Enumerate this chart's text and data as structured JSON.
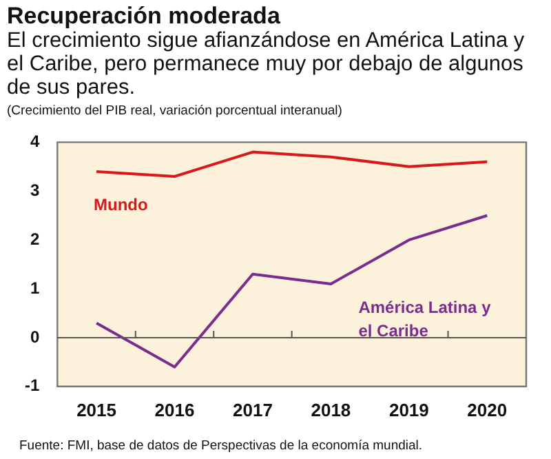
{
  "chart_data": {
    "type": "line",
    "title": "Recuperación moderada",
    "subtitle": "El crecimiento sigue afianzándose en América Latina y el Caribe, pero permanece muy por debajo de algunos de sus pares.",
    "ylabel": "(Crecimiento del PIB real, variación porcentual interanual)",
    "categories": [
      "2015",
      "2016",
      "2017",
      "2018",
      "2019",
      "2020"
    ],
    "series": [
      {
        "name": "Mundo",
        "color": "#d7191c",
        "values": [
          3.4,
          3.3,
          3.8,
          3.7,
          3.5,
          3.6
        ]
      },
      {
        "name": "América Latina y el Caribe",
        "color": "#7b2d8e",
        "values": [
          0.3,
          -0.6,
          1.3,
          1.1,
          2.0,
          2.5
        ]
      }
    ],
    "ylim": [
      -1,
      4
    ],
    "yticks": [
      -1,
      0,
      1,
      2,
      3,
      4
    ],
    "grid": false,
    "legend": false,
    "marker": "none",
    "line_style": "solid",
    "ref_lines": [
      {
        "axis": "y",
        "value": 0,
        "color": "#555555"
      }
    ],
    "annotations": [
      "Fuente: FMI, base de datos de Perspectivas de la economía mundial."
    ]
  }
}
